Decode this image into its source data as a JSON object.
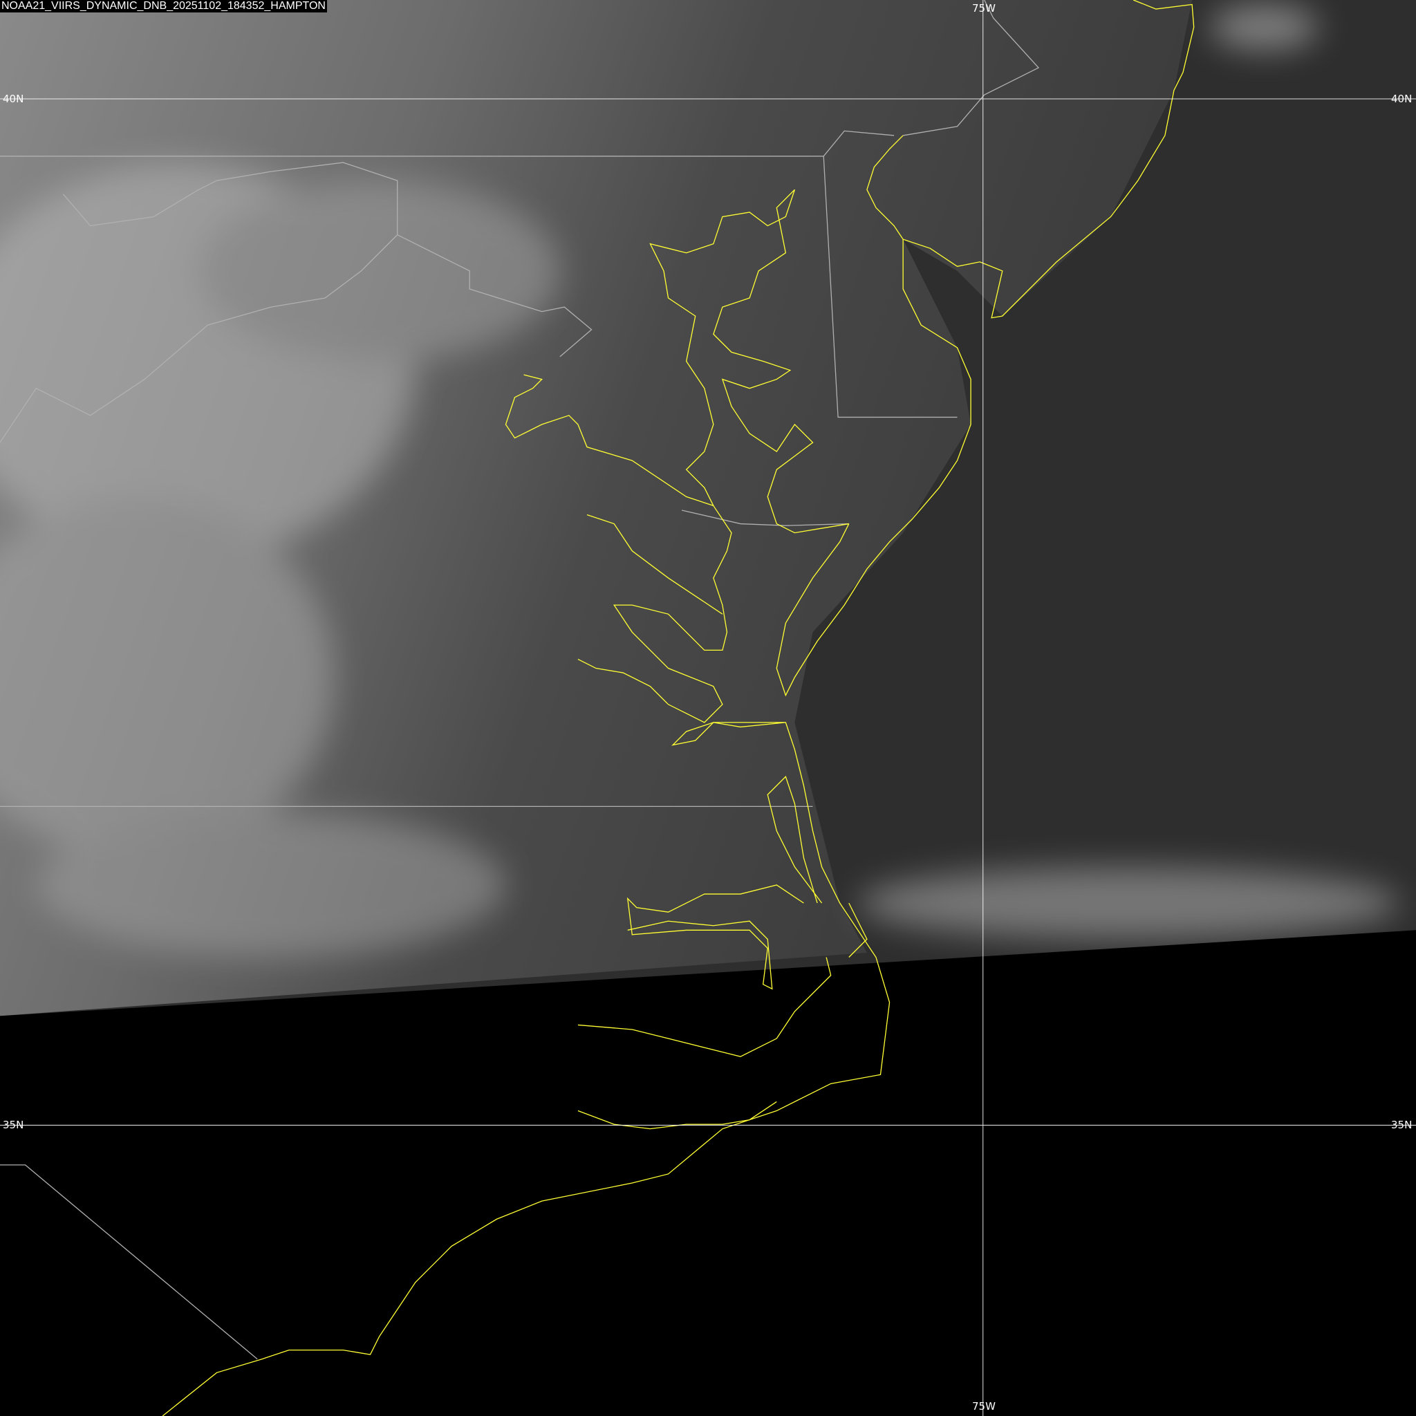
{
  "title": "NOAA21_VIIRS_DYNAMIC_DNB_20251102_184352_HAMPTON",
  "grid_labels": {
    "lon_top": "75W",
    "lon_bottom": "75W",
    "lat_40_left": "40N",
    "lat_40_right": "40N",
    "lat_35_left": "35N",
    "lat_35_right": "35N"
  },
  "colors": {
    "coastline": "#ffff33",
    "political_borders": "#b0b0b0",
    "graticule": "#ffffff",
    "no_data": "#000000",
    "ocean": "#2e2e2e",
    "land": "#4a4a4a",
    "clouds": "#9a9a9a"
  }
}
